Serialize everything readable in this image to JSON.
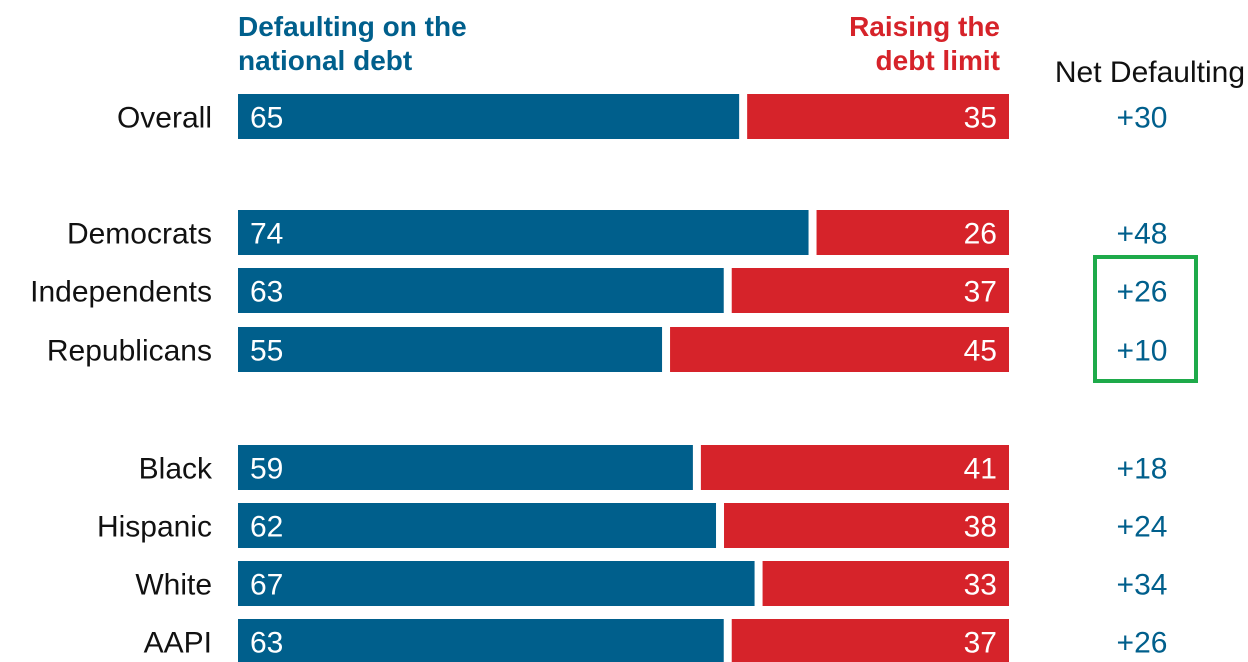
{
  "chart_data": {
    "type": "bar",
    "stacked": true,
    "orientation": "horizontal",
    "normalized_to": 100,
    "categories": [
      "Overall",
      "Democrats",
      "Independents",
      "Republicans",
      "Black",
      "Hispanic",
      "White",
      "AAPI"
    ],
    "groups": [
      [
        "Overall"
      ],
      [
        "Democrats",
        "Independents",
        "Republicans"
      ],
      [
        "Black",
        "Hispanic",
        "White",
        "AAPI"
      ]
    ],
    "series": [
      {
        "name": "Defaulting on the national debt",
        "color": "#005f8c",
        "values": [
          65,
          74,
          63,
          55,
          59,
          62,
          67,
          63
        ]
      },
      {
        "name": "Raising the debt limit",
        "color": "#d6232a",
        "values": [
          35,
          26,
          37,
          45,
          41,
          38,
          33,
          37
        ]
      }
    ],
    "net": {
      "title": "Net Defaulting",
      "color": "#005f8c",
      "values": [
        "+30",
        "+48",
        "+26",
        "+10",
        "+18",
        "+24",
        "+34",
        "+26"
      ],
      "highlight": {
        "categories": [
          "Independents",
          "Republicans"
        ],
        "color": "#1eaa4a"
      }
    },
    "legend": {
      "left_lines": [
        "Defaulting on the",
        "national debt"
      ],
      "right_lines": [
        "Raising the",
        "debt limit"
      ]
    }
  }
}
